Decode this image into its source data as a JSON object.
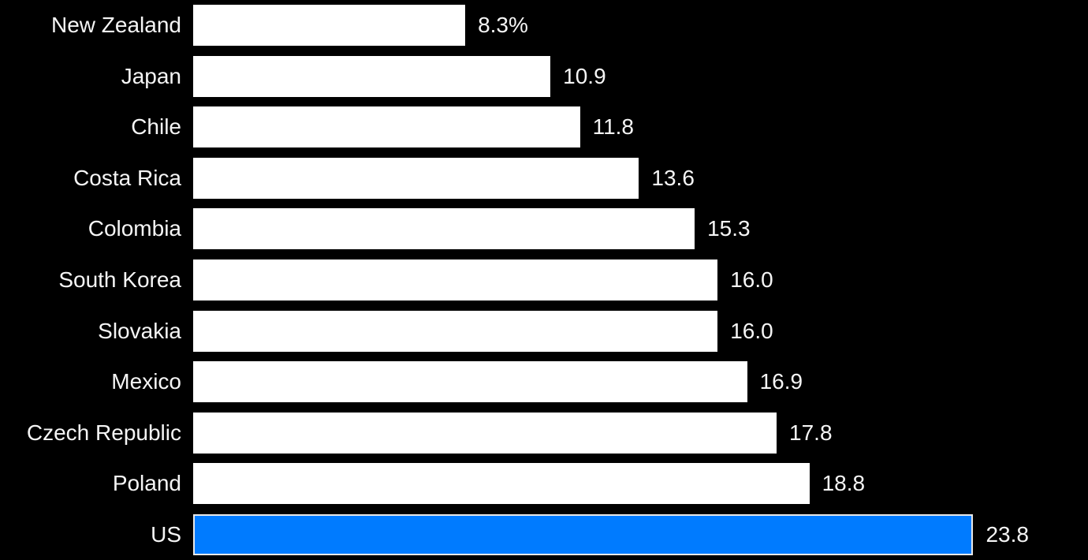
{
  "chart_data": {
    "type": "bar",
    "orientation": "horizontal",
    "title": "",
    "xlabel": "",
    "ylabel": "",
    "grid": false,
    "legend": "none",
    "xlim": [
      0,
      27.3
    ],
    "categories": [
      "New Zealand",
      "Japan",
      "Chile",
      "Costa Rica",
      "Colombia",
      "South Korea",
      "Slovakia",
      "Mexico",
      "Czech Republic",
      "Poland",
      "US"
    ],
    "values": [
      8.3,
      10.9,
      11.8,
      13.6,
      15.3,
      16.0,
      16.0,
      16.9,
      17.8,
      18.8,
      23.8
    ],
    "value_labels": [
      "8.3%",
      "10.9",
      "11.8",
      "13.6",
      "15.3",
      "16.0",
      "16.0",
      "16.9",
      "17.8",
      "18.8",
      "23.8"
    ],
    "highlight_index": 10,
    "colors": {
      "background": "#000000",
      "bar": "#ffffff",
      "highlight_bar": "#007bff",
      "highlight_border": "#e8e8e8",
      "text": "#f5f5f5"
    }
  }
}
